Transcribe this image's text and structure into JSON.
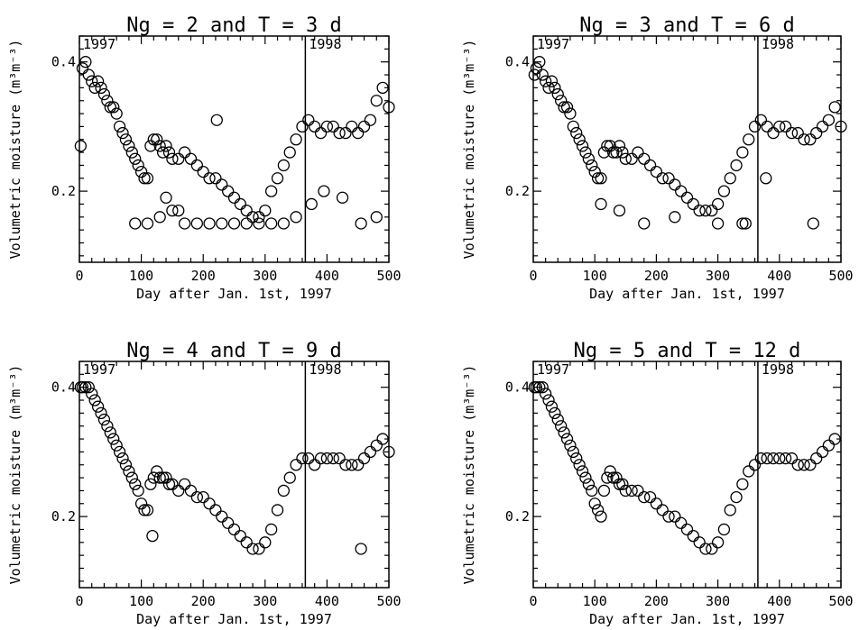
{
  "chart_data": [
    {
      "type": "scatter",
      "title": "Ng = 2 and T = 3 d",
      "xlabel": "Day after Jan. 1st, 1997",
      "ylabel": "Volumetric moisture (m³m⁻³)",
      "xlim": [
        0,
        500
      ],
      "ylim": [
        0.09,
        0.44
      ],
      "xticks": [
        0,
        100,
        200,
        300,
        400,
        500
      ],
      "yticks": [
        0.2,
        0.4
      ],
      "xtick_labels": [
        "0",
        "100",
        "200",
        "300",
        "400",
        "500"
      ],
      "ytick_labels": [
        "0.2",
        "0.4"
      ],
      "year_divider": 365,
      "year_labels": [
        "1997",
        "1998"
      ],
      "series": [
        {
          "marker": "circle",
          "x": [
            2,
            5,
            10,
            15,
            20,
            25,
            30,
            35,
            40,
            45,
            50,
            55,
            60,
            65,
            70,
            75,
            80,
            85,
            90,
            95,
            100,
            105,
            110,
            115,
            120,
            125,
            130,
            135,
            140,
            145,
            150,
            160,
            170,
            180,
            190,
            200,
            210,
            220,
            230,
            240,
            250,
            260,
            270,
            280,
            290,
            300,
            310,
            320,
            330,
            340,
            350,
            360,
            370,
            380,
            390,
            400,
            410,
            420,
            430,
            440,
            450,
            460,
            470,
            480,
            490,
            500,
            90,
            110,
            130,
            150,
            170,
            190,
            210,
            230,
            250,
            270,
            290,
            310,
            330,
            350,
            375,
            395,
            425,
            455,
            480,
            222,
            140,
            160
          ],
          "y": [
            0.27,
            0.39,
            0.4,
            0.38,
            0.37,
            0.36,
            0.37,
            0.36,
            0.35,
            0.34,
            0.33,
            0.33,
            0.32,
            0.3,
            0.29,
            0.28,
            0.27,
            0.26,
            0.25,
            0.24,
            0.23,
            0.22,
            0.22,
            0.27,
            0.28,
            0.28,
            0.27,
            0.26,
            0.27,
            0.26,
            0.25,
            0.25,
            0.26,
            0.25,
            0.24,
            0.23,
            0.22,
            0.22,
            0.21,
            0.2,
            0.19,
            0.18,
            0.17,
            0.16,
            0.16,
            0.17,
            0.2,
            0.22,
            0.24,
            0.26,
            0.28,
            0.3,
            0.31,
            0.3,
            0.29,
            0.3,
            0.3,
            0.29,
            0.29,
            0.3,
            0.29,
            0.3,
            0.31,
            0.34,
            0.36,
            0.33,
            0.15,
            0.15,
            0.16,
            0.17,
            0.15,
            0.15,
            0.15,
            0.15,
            0.15,
            0.15,
            0.15,
            0.15,
            0.15,
            0.16,
            0.18,
            0.2,
            0.19,
            0.15,
            0.16,
            0.31,
            0.19,
            0.17
          ]
        }
      ]
    },
    {
      "type": "scatter",
      "title": "Ng = 3 and T = 6 d",
      "xlabel": "Day after Jan. 1st, 1997",
      "ylabel": "Volumetric moisture (m³m⁻³)",
      "xlim": [
        0,
        500
      ],
      "ylim": [
        0.09,
        0.44
      ],
      "xticks": [
        0,
        100,
        200,
        300,
        400,
        500
      ],
      "yticks": [
        0.2,
        0.4
      ],
      "xtick_labels": [
        "0",
        "100",
        "200",
        "300",
        "400",
        "500"
      ],
      "ytick_labels": [
        "0.2",
        "0.4"
      ],
      "year_divider": 365,
      "year_labels": [
        "1997",
        "1998"
      ],
      "series": [
        {
          "marker": "circle",
          "x": [
            2,
            5,
            10,
            15,
            20,
            25,
            30,
            35,
            40,
            45,
            50,
            55,
            60,
            65,
            70,
            75,
            80,
            85,
            90,
            95,
            100,
            105,
            110,
            115,
            120,
            125,
            130,
            135,
            140,
            145,
            150,
            160,
            170,
            180,
            190,
            200,
            210,
            220,
            230,
            240,
            250,
            260,
            270,
            280,
            290,
            300,
            310,
            320,
            330,
            340,
            350,
            360,
            370,
            380,
            390,
            400,
            410,
            420,
            430,
            440,
            450,
            460,
            470,
            480,
            490,
            500,
            110,
            140,
            180,
            230,
            300,
            340,
            345,
            378,
            455
          ],
          "y": [
            0.38,
            0.39,
            0.4,
            0.38,
            0.37,
            0.36,
            0.37,
            0.36,
            0.35,
            0.34,
            0.33,
            0.33,
            0.32,
            0.3,
            0.29,
            0.28,
            0.27,
            0.26,
            0.25,
            0.24,
            0.23,
            0.22,
            0.22,
            0.26,
            0.27,
            0.27,
            0.26,
            0.26,
            0.27,
            0.26,
            0.25,
            0.25,
            0.26,
            0.25,
            0.24,
            0.23,
            0.22,
            0.22,
            0.21,
            0.2,
            0.19,
            0.18,
            0.17,
            0.17,
            0.17,
            0.18,
            0.2,
            0.22,
            0.24,
            0.26,
            0.28,
            0.3,
            0.31,
            0.3,
            0.29,
            0.3,
            0.3,
            0.29,
            0.29,
            0.28,
            0.28,
            0.29,
            0.3,
            0.31,
            0.33,
            0.3,
            0.18,
            0.17,
            0.15,
            0.16,
            0.15,
            0.15,
            0.15,
            0.22,
            0.15
          ]
        }
      ]
    },
    {
      "type": "scatter",
      "title": "Ng = 4 and T = 9 d",
      "xlabel": "Day after Jan. 1st, 1997",
      "ylabel": "Volumetric moisture (m³m⁻³)",
      "xlim": [
        0,
        500
      ],
      "ylim": [
        0.09,
        0.44
      ],
      "xticks": [
        0,
        100,
        200,
        300,
        400,
        500
      ],
      "yticks": [
        0.2,
        0.4
      ],
      "xtick_labels": [
        "0",
        "100",
        "200",
        "300",
        "400",
        "500"
      ],
      "ytick_labels": [
        "0.2",
        "0.4"
      ],
      "year_divider": 365,
      "year_labels": [
        "1997",
        "1998"
      ],
      "series": [
        {
          "marker": "circle",
          "x": [
            2,
            5,
            10,
            15,
            20,
            25,
            30,
            35,
            40,
            45,
            50,
            55,
            60,
            65,
            70,
            75,
            80,
            85,
            90,
            95,
            100,
            105,
            110,
            115,
            120,
            125,
            130,
            135,
            140,
            145,
            150,
            160,
            170,
            180,
            190,
            200,
            210,
            220,
            230,
            240,
            250,
            260,
            270,
            280,
            290,
            300,
            310,
            320,
            330,
            340,
            350,
            360,
            370,
            380,
            390,
            400,
            410,
            420,
            430,
            440,
            450,
            460,
            470,
            480,
            490,
            500,
            118,
            455
          ],
          "y": [
            0.4,
            0.4,
            0.4,
            0.4,
            0.39,
            0.38,
            0.37,
            0.36,
            0.35,
            0.34,
            0.33,
            0.32,
            0.31,
            0.3,
            0.29,
            0.28,
            0.27,
            0.26,
            0.25,
            0.24,
            0.22,
            0.21,
            0.21,
            0.25,
            0.26,
            0.27,
            0.26,
            0.26,
            0.26,
            0.25,
            0.25,
            0.24,
            0.25,
            0.24,
            0.23,
            0.23,
            0.22,
            0.21,
            0.2,
            0.19,
            0.18,
            0.17,
            0.16,
            0.15,
            0.15,
            0.16,
            0.18,
            0.21,
            0.24,
            0.26,
            0.28,
            0.29,
            0.29,
            0.28,
            0.29,
            0.29,
            0.29,
            0.29,
            0.28,
            0.28,
            0.28,
            0.29,
            0.3,
            0.31,
            0.32,
            0.3,
            0.17,
            0.15
          ]
        }
      ]
    },
    {
      "type": "scatter",
      "title": "Ng = 5 and T = 12 d",
      "xlabel": "Day after Jan. 1st, 1997",
      "ylabel": "Volumetric moisture (m³m⁻³)",
      "xlim": [
        0,
        500
      ],
      "ylim": [
        0.09,
        0.44
      ],
      "xticks": [
        0,
        100,
        200,
        300,
        400,
        500
      ],
      "yticks": [
        0.2,
        0.4
      ],
      "xtick_labels": [
        "0",
        "100",
        "200",
        "300",
        "400",
        "500"
      ],
      "ytick_labels": [
        "0.2",
        "0.4"
      ],
      "year_divider": 365,
      "year_labels": [
        "1997",
        "1998"
      ],
      "series": [
        {
          "marker": "circle",
          "x": [
            2,
            5,
            10,
            15,
            20,
            25,
            30,
            35,
            40,
            45,
            50,
            55,
            60,
            65,
            70,
            75,
            80,
            85,
            90,
            95,
            100,
            105,
            110,
            115,
            120,
            125,
            130,
            135,
            140,
            145,
            150,
            160,
            170,
            180,
            190,
            200,
            210,
            220,
            230,
            240,
            250,
            260,
            270,
            280,
            290,
            300,
            310,
            320,
            330,
            340,
            350,
            360,
            370,
            380,
            390,
            400,
            410,
            420,
            430,
            440,
            450,
            460,
            470,
            480,
            490
          ],
          "y": [
            0.4,
            0.4,
            0.4,
            0.4,
            0.39,
            0.38,
            0.37,
            0.36,
            0.35,
            0.34,
            0.33,
            0.32,
            0.31,
            0.3,
            0.29,
            0.28,
            0.27,
            0.26,
            0.25,
            0.24,
            0.22,
            0.21,
            0.2,
            0.24,
            0.26,
            0.27,
            0.26,
            0.26,
            0.25,
            0.25,
            0.24,
            0.24,
            0.24,
            0.23,
            0.23,
            0.22,
            0.21,
            0.2,
            0.2,
            0.19,
            0.18,
            0.17,
            0.16,
            0.15,
            0.15,
            0.16,
            0.18,
            0.21,
            0.23,
            0.25,
            0.27,
            0.28,
            0.29,
            0.29,
            0.29,
            0.29,
            0.29,
            0.29,
            0.28,
            0.28,
            0.28,
            0.29,
            0.3,
            0.31,
            0.32
          ]
        }
      ]
    }
  ]
}
